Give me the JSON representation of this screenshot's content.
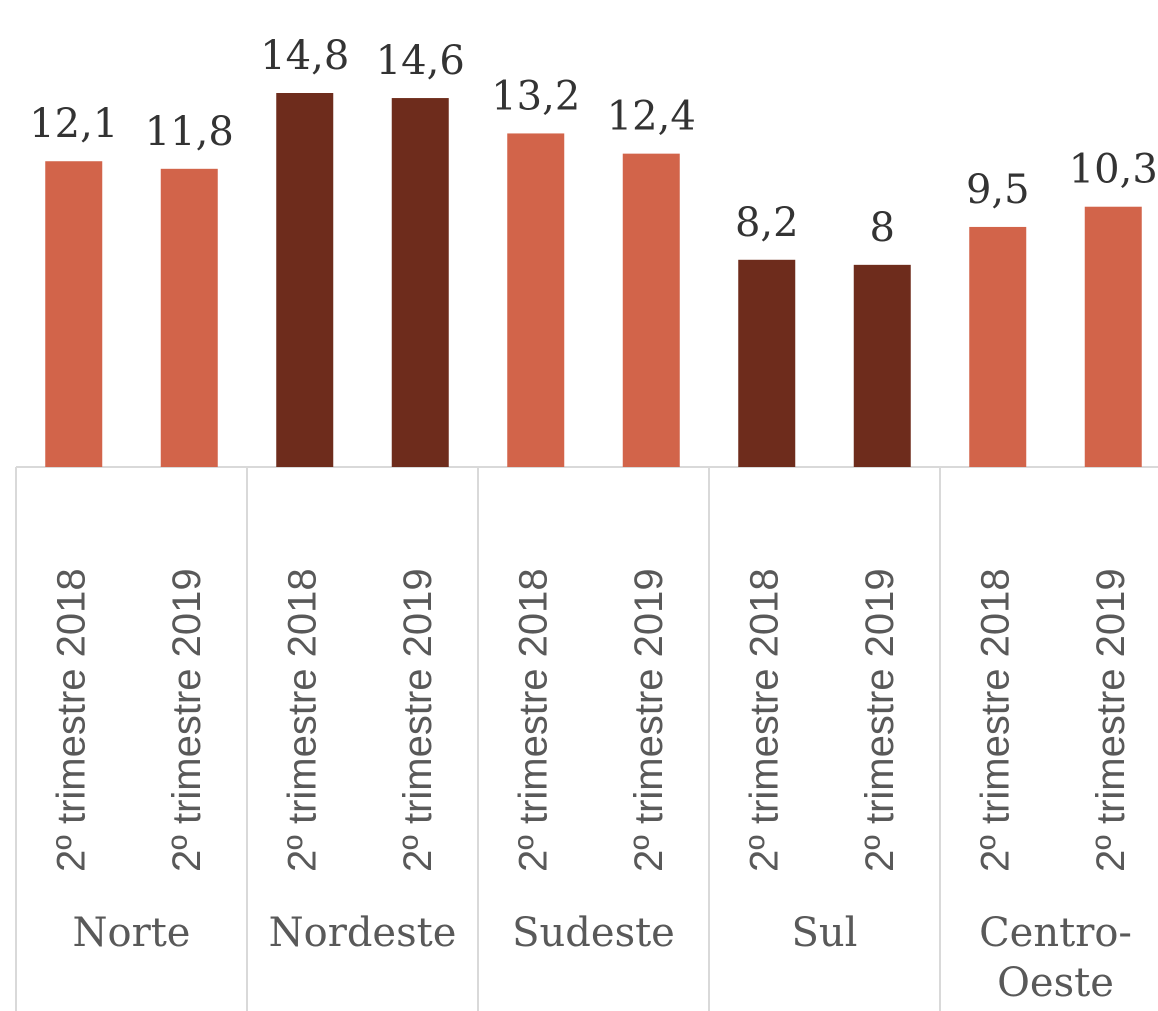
{
  "chart_data": {
    "type": "bar",
    "groups": [
      "Norte",
      "Nordeste",
      "Sudeste",
      "Sul",
      "Centro-Oeste"
    ],
    "categories": [
      "2º trimestre 2018",
      "2º trimestre 2019",
      "2º trimestre 2018",
      "2º trimestre 2019",
      "2º trimestre 2018",
      "2º trimestre 2019",
      "2º trimestre 2018",
      "2º trimestre 2019",
      "2º trimestre 2018",
      "2º trimestre 2019"
    ],
    "values": [
      12.1,
      11.8,
      14.8,
      14.6,
      13.2,
      12.4,
      8.2,
      8,
      9.5,
      10.3
    ],
    "value_labels": [
      "12,1",
      "11,8",
      "14,8",
      "14,6",
      "13,2",
      "12,4",
      "8,2",
      "8",
      "9,5",
      "10,3"
    ],
    "colors": [
      "#D2644A",
      "#D2644A",
      "#6E2C1C",
      "#6E2C1C",
      "#D2644A",
      "#D2644A",
      "#6E2C1C",
      "#6E2C1C",
      "#D2644A",
      "#D2644A"
    ]
  }
}
